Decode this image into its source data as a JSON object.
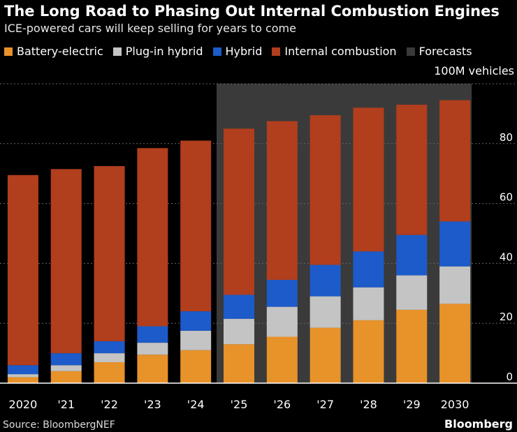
{
  "header": {
    "title": "The Long Road to Phasing Out Internal Combustion Engines",
    "subtitle": "ICE-powered cars will keep selling for years to come"
  },
  "legend": {
    "items": [
      {
        "label": "Battery-electric",
        "color": "#e8922a"
      },
      {
        "label": "Plug-in hybrid",
        "color": "#c4c4c4"
      },
      {
        "label": "Hybrid",
        "color": "#1c5bc9"
      },
      {
        "label": "Internal combustion",
        "color": "#b13e1d"
      },
      {
        "label": "Forecasts",
        "color": "#3a3a3a"
      }
    ]
  },
  "unit_label": "100M vehicles",
  "footer": {
    "source": "Source: BloombergNEF",
    "logo": "Bloomberg"
  },
  "chart_data": {
    "type": "bar",
    "stacked": true,
    "categories": [
      "2020",
      "'21",
      "'22",
      "'23",
      "'24",
      "'25",
      "'26",
      "'27",
      "'28",
      "'29",
      "2030"
    ],
    "series": [
      {
        "name": "Battery-electric",
        "color": "#e8922a",
        "values": [
          2,
          4,
          7,
          9.5,
          11,
          13,
          15.5,
          18.5,
          21,
          24.5,
          26.5
        ]
      },
      {
        "name": "Plug-in hybrid",
        "color": "#c4c4c4",
        "values": [
          1,
          2,
          3,
          4,
          6.5,
          8.5,
          10,
          10.5,
          11,
          11.5,
          12.5
        ]
      },
      {
        "name": "Hybrid",
        "color": "#1c5bc9",
        "values": [
          3,
          4,
          4,
          5.5,
          6.5,
          8,
          9,
          10.5,
          12,
          13.5,
          15
        ]
      },
      {
        "name": "Internal combustion",
        "color": "#b13e1d",
        "values": [
          63.5,
          61.5,
          58.5,
          59.5,
          57,
          55.5,
          53,
          50,
          48,
          43.5,
          40.5
        ]
      }
    ],
    "forecast_range": [
      "'25",
      "2030"
    ],
    "forecast_color": "#3a3a3a",
    "ylim": [
      0,
      100
    ],
    "yticks": [
      0,
      20,
      40,
      60,
      80
    ],
    "y_axis_position": "right",
    "grid": true
  }
}
